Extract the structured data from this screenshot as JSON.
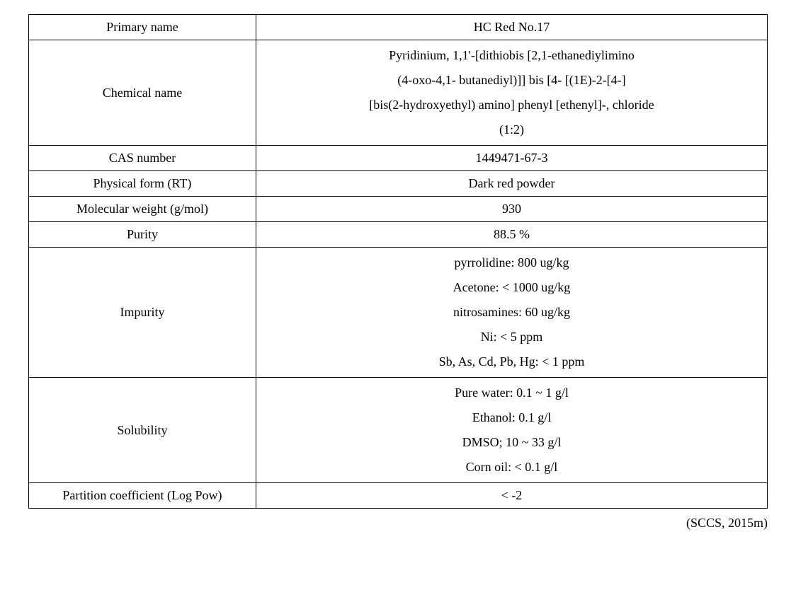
{
  "table": {
    "columns": [
      {
        "width_pct": 30,
        "align": "center"
      },
      {
        "width_pct": 70,
        "align": "center"
      }
    ],
    "border_color": "#000000",
    "background_color": "#ffffff",
    "font_family": "Times New Roman",
    "label_fontsize": 18,
    "value_fontsize": 18,
    "rows": [
      {
        "label": "Primary name",
        "lines": [
          "HC Red No.17"
        ]
      },
      {
        "label": "Chemical name",
        "lines": [
          "Pyridinium, 1,1'-[dithiobis [2,1-ethanediylimino",
          "(4-oxo-4,1- butanediyl)]] bis [4- [(1E)-2-[4-]",
          "[bis(2-hydroxyethyl) amino] phenyl [ethenyl]-, chloride",
          "(1:2)"
        ]
      },
      {
        "label": "CAS number",
        "lines": [
          "1449471-67-3"
        ]
      },
      {
        "label": "Physical form (RT)",
        "lines": [
          "Dark red powder"
        ]
      },
      {
        "label": "Molecular weight (g/mol)",
        "lines": [
          "930"
        ]
      },
      {
        "label": "Purity",
        "lines": [
          "88.5 %"
        ]
      },
      {
        "label": "Impurity",
        "lines": [
          "pyrrolidine: 800 ug/kg",
          "Acetone: < 1000 ug/kg",
          "nitrosamines: 60 ug/kg",
          "Ni: < 5 ppm",
          "Sb, As, Cd, Pb, Hg: < 1 ppm"
        ]
      },
      {
        "label": "Solubility",
        "lines": [
          "Pure water: 0.1 ~ 1 g/l",
          "Ethanol: 0.1 g/l",
          "DMSO; 10 ~ 33 g/l",
          "Corn oil: < 0.1 g/l"
        ]
      },
      {
        "label": "Partition coefficient (Log Pow)",
        "lines": [
          "< -2"
        ]
      }
    ]
  },
  "source": "(SCCS, 2015m)"
}
